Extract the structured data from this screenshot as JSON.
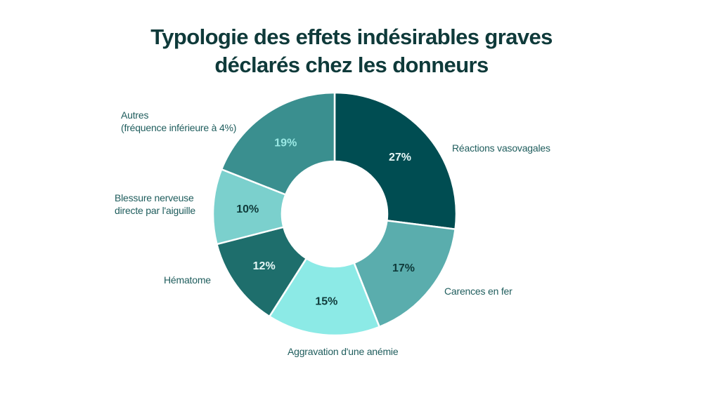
{
  "chart_data": {
    "type": "pie",
    "variant": "donut",
    "title": [
      "Typologie des effets indésirables graves",
      "déclarés chez les donneurs"
    ],
    "categories": [
      "Réactions vasovagales",
      "Carences en fer",
      "Aggravation d'une anémie",
      "Hématome",
      "Blessure nerveuse directe par l'aiguille",
      "Autres (fréquence inférieure à 4%)"
    ],
    "category_label_lines": [
      [
        "Réactions vasovagales"
      ],
      [
        "Carences en fer"
      ],
      [
        "Aggravation d'une anémie"
      ],
      [
        "Hématome"
      ],
      [
        "Blessure nerveuse",
        "directe par l'aiguille"
      ],
      [
        "Autres",
        "(fréquence inférieure à 4%)"
      ]
    ],
    "values": [
      27,
      17,
      15,
      12,
      10,
      19
    ],
    "value_labels": [
      "27%",
      "17%",
      "15%",
      "12%",
      "10%",
      "19%"
    ],
    "colors": [
      "#004d52",
      "#5aadad",
      "#8ceae6",
      "#1e6e6c",
      "#7bd0cd",
      "#3a8f8f"
    ],
    "value_label_colors": [
      "#e6f7f6",
      "#0f3a3a",
      "#0f3a3a",
      "#e6f7f6",
      "#0f3a3a",
      "#9ae8e4"
    ],
    "label_color": "#1f5d5d",
    "title_color": "#0f3a3a",
    "stroke_color": "#ffffff"
  }
}
